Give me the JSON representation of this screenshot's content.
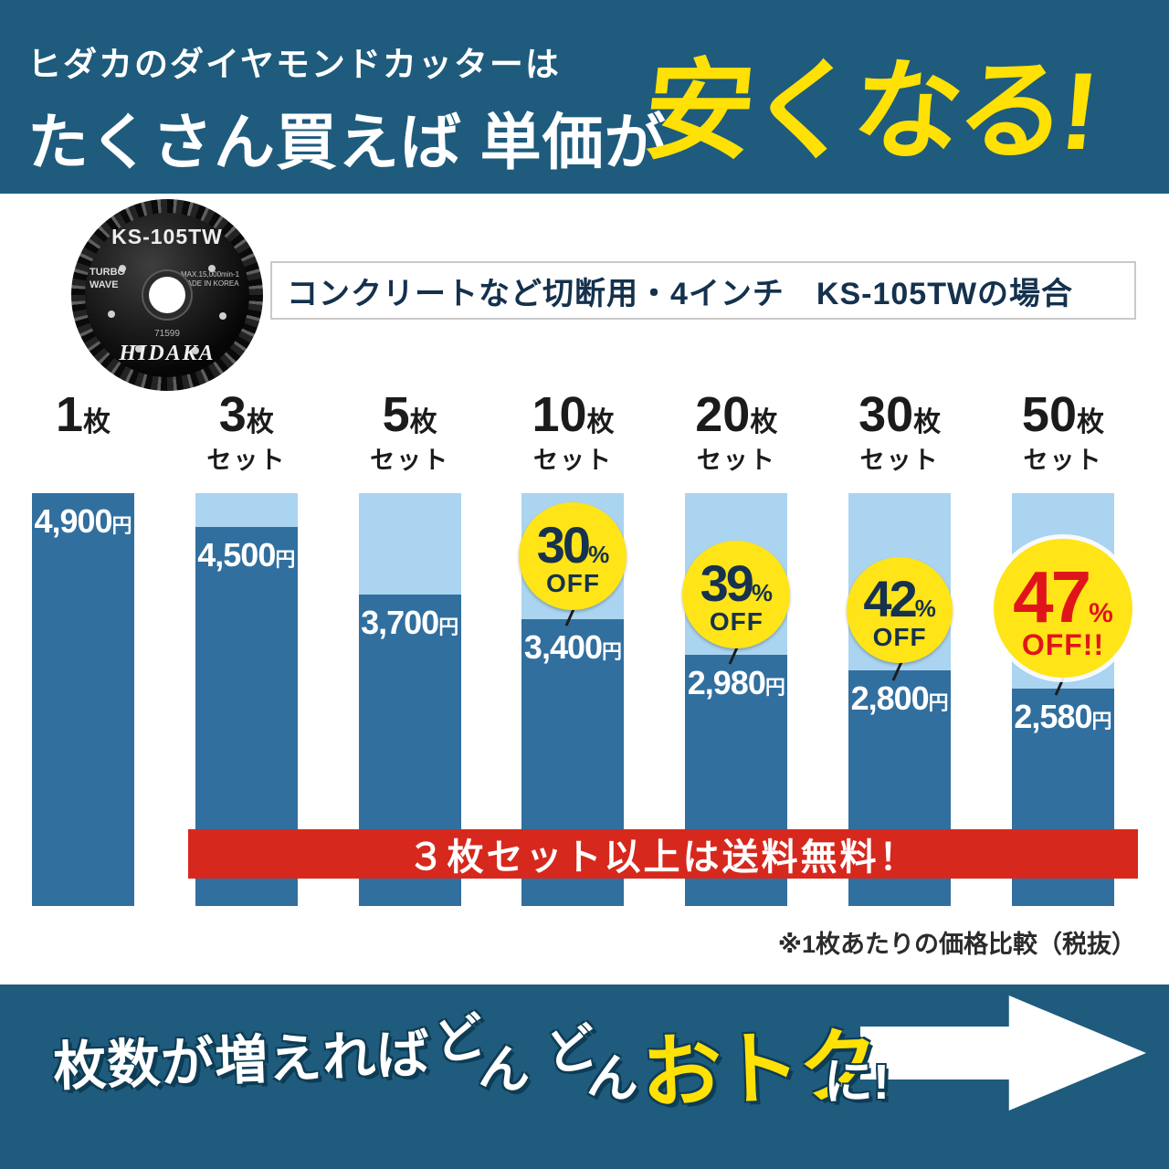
{
  "header": {
    "line1": "ヒダカのダイヤモンドカッターは",
    "line2_white": "たくさん買えば 単価が",
    "line2_yellow": "安くなる!"
  },
  "product": {
    "model": "KS-105TW",
    "turbo": "TURBO\nWAVE",
    "spec": "MAX.15,000min-1\nMADE IN KOREA",
    "serial": "71599",
    "brand": "HIDAKA",
    "label": "コンクリートなど切断用・4インチ　KS-105TWの場合"
  },
  "chart_data": {
    "type": "bar",
    "categories": [
      "1枚",
      "3枚セット",
      "5枚セット",
      "10枚セット",
      "20枚セット",
      "30枚セット",
      "50枚セット"
    ],
    "values": [
      4900,
      4500,
      3700,
      3400,
      2980,
      2800,
      2580
    ],
    "base_price": 4900,
    "ylim": [
      0,
      4900
    ],
    "unit_label": "枚",
    "yen": "円",
    "percent": "%",
    "columns": [
      {
        "qty": "1",
        "set": "",
        "price": 4900,
        "price_text": "4,900",
        "discount": null,
        "off": null
      },
      {
        "qty": "3",
        "set": "セット",
        "price": 4500,
        "price_text": "4,500",
        "discount": null,
        "off": null
      },
      {
        "qty": "5",
        "set": "セット",
        "price": 3700,
        "price_text": "3,700",
        "discount": null,
        "off": null
      },
      {
        "qty": "10",
        "set": "セット",
        "price": 3400,
        "price_text": "3,400",
        "discount": "30",
        "off": "OFF"
      },
      {
        "qty": "20",
        "set": "セット",
        "price": 2980,
        "price_text": "2,980",
        "discount": "39",
        "off": "OFF"
      },
      {
        "qty": "30",
        "set": "セット",
        "price": 2800,
        "price_text": "2,800",
        "discount": "42",
        "off": "OFF"
      },
      {
        "qty": "50",
        "set": "セット",
        "price": 2580,
        "price_text": "2,580",
        "discount": "47",
        "off": "OFF!!"
      }
    ]
  },
  "banner": {
    "text": "３枚セット以上は送料無料！"
  },
  "note": "※1枚あたりの価格比較（税抜）",
  "footer": {
    "lead": "枚数が増えれば",
    "script_chars": [
      "ど",
      "ん",
      "ど",
      "ん"
    ],
    "highlight": "おトク",
    "suffix": "に!"
  },
  "colors": {
    "band_blue": "#1e5b7d",
    "bar_blue": "#316f9f",
    "bar_light_blue": "#aad4f0",
    "accent_yellow": "#ffe105",
    "badge_yellow": "#ffe417",
    "banner_red": "#d7281e",
    "discount_red": "#e0151b"
  }
}
